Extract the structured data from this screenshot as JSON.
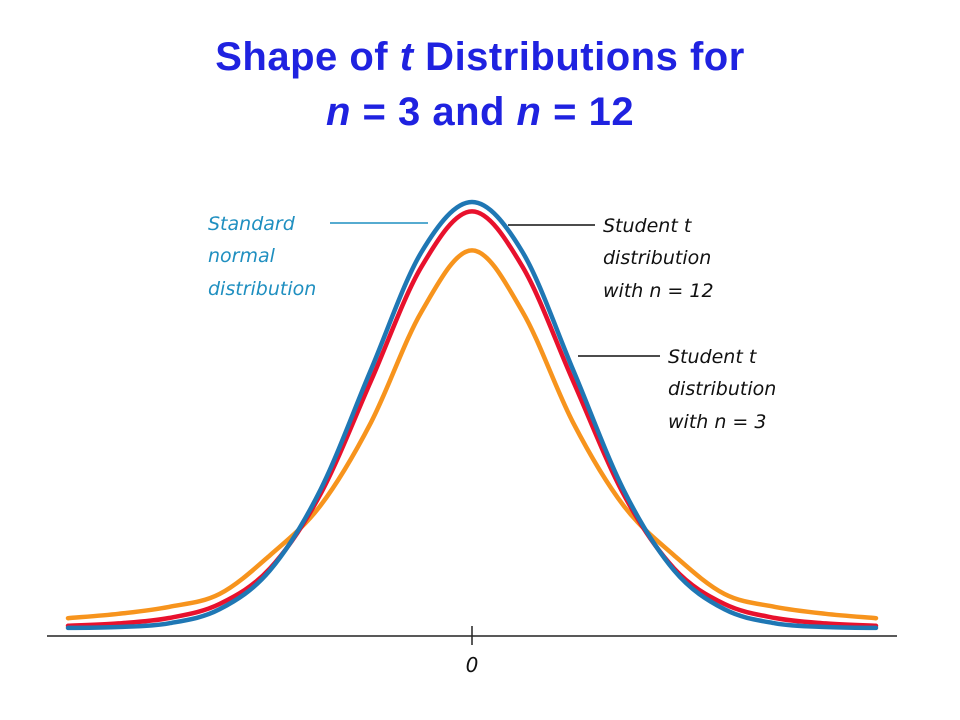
{
  "title": {
    "line1_a": "Shape of ",
    "line1_t": "t",
    "line1_b": " Distributions for",
    "line2_n1": "n",
    "line2_a": " = 3 and ",
    "line2_n2": "n",
    "line2_b": " = 12"
  },
  "chart_data": {
    "type": "line",
    "title": "Shape of t Distributions for n = 3 and n = 12",
    "xlabel": "",
    "ylabel": "",
    "xlim": [
      -4,
      4
    ],
    "x_ticks": [
      0
    ],
    "x_tick_labels": [
      "0"
    ],
    "grid": false,
    "series": [
      {
        "name": "Standard normal distribution",
        "color": "#1f77b4",
        "x": [
          -4,
          -3.5,
          -3,
          -2.5,
          -2,
          -1.5,
          -1,
          -0.5,
          0,
          0.5,
          1,
          1.5,
          2,
          2.5,
          3,
          3.5,
          4
        ],
        "y": [
          0.0001,
          0.0009,
          0.0044,
          0.0175,
          0.054,
          0.1295,
          0.242,
          0.3521,
          0.3989,
          0.3521,
          0.242,
          0.1295,
          0.054,
          0.0175,
          0.0044,
          0.0009,
          0.0001
        ]
      },
      {
        "name": "Student t distribution with n = 12",
        "color": "#e8112d",
        "x": [
          -4,
          -3.5,
          -3,
          -2.5,
          -2,
          -1.5,
          -1,
          -0.5,
          0,
          0.5,
          1,
          1.5,
          2,
          2.5,
          3,
          3.5,
          4
        ],
        "y": [
          0.0021,
          0.0043,
          0.0094,
          0.0225,
          0.0558,
          0.1254,
          0.2315,
          0.3383,
          0.3901,
          0.3383,
          0.2315,
          0.1254,
          0.0558,
          0.0225,
          0.0094,
          0.0043,
          0.0021
        ]
      },
      {
        "name": "Student t distribution with n = 3",
        "color": "#f7941d",
        "x": [
          -4,
          -3.5,
          -3,
          -2.5,
          -2,
          -1.5,
          -1,
          -0.5,
          0,
          0.5,
          1,
          1.5,
          2,
          2.5,
          3,
          3.5,
          4
        ],
        "y": [
          0.0092,
          0.0133,
          0.0198,
          0.0318,
          0.0681,
          0.1147,
          0.1925,
          0.2962,
          0.3536,
          0.2962,
          0.1925,
          0.1147,
          0.0681,
          0.0318,
          0.0198,
          0.0133,
          0.0092
        ]
      }
    ],
    "annotations": [
      {
        "lines": [
          "Standard",
          "normal",
          "distribution"
        ],
        "color": "#1f8fc0"
      },
      {
        "lines": [
          "Student t",
          "distribution",
          "with n = 12"
        ],
        "color": "#000000"
      },
      {
        "lines": [
          "Student t",
          "distribution",
          "with n = 3"
        ],
        "color": "#000000"
      }
    ]
  }
}
